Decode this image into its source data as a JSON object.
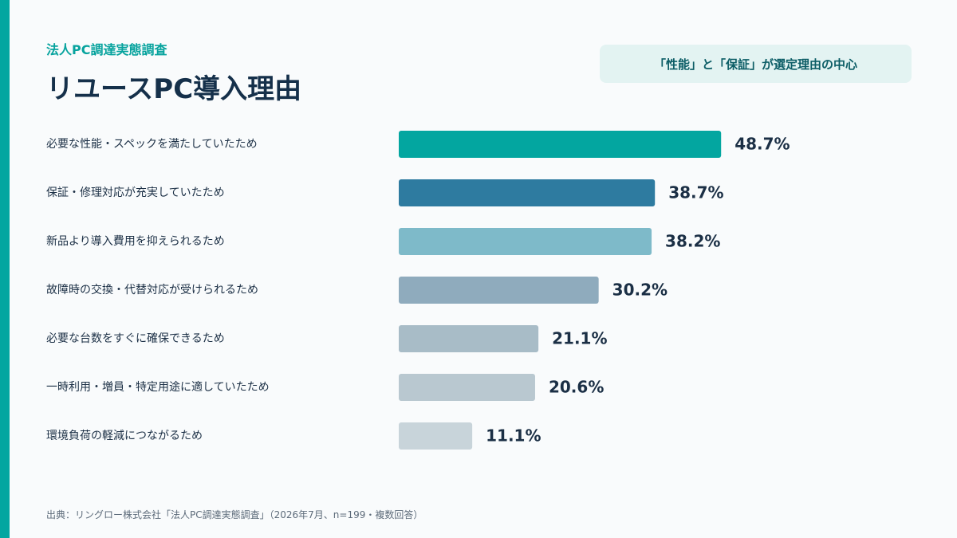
{
  "header": {
    "eyebrow": "法人PC調達実態調査",
    "title": "リユースPC導入理由",
    "callout": "「性能」と「保証」が選定理由の中心"
  },
  "chart_data": {
    "type": "bar",
    "orientation": "horizontal",
    "categories": [
      "必要な性能・スペックを満たしていたため",
      "保証・修理対応が充実していたため",
      "新品より導入費用を抑えられるため",
      "故障時の交換・代替対応が受けられるため",
      "必要な台数をすぐに確保できるため",
      "一時利用・増員・特定用途に適していたため",
      "環境負荷の軽減につながるため"
    ],
    "values": [
      48.7,
      38.7,
      38.2,
      30.2,
      21.1,
      20.6,
      11.1
    ],
    "value_labels": [
      "48.7%",
      "38.7%",
      "38.2%",
      "30.2%",
      "21.1%",
      "20.6%",
      "11.1%"
    ],
    "unit": "%",
    "xlim": [
      0,
      60
    ],
    "bar_colors": [
      "#03a6a0",
      "#2e7ba0",
      "#7ebac9",
      "#8fabbd",
      "#a8bcc7",
      "#b9c8d0",
      "#c8d4da"
    ],
    "grid": false,
    "legend": "none"
  },
  "footer": {
    "source": "出典：リングロー株式会社「法人PC調達実態調査」（2026年7月、n=199・複数回答）"
  }
}
